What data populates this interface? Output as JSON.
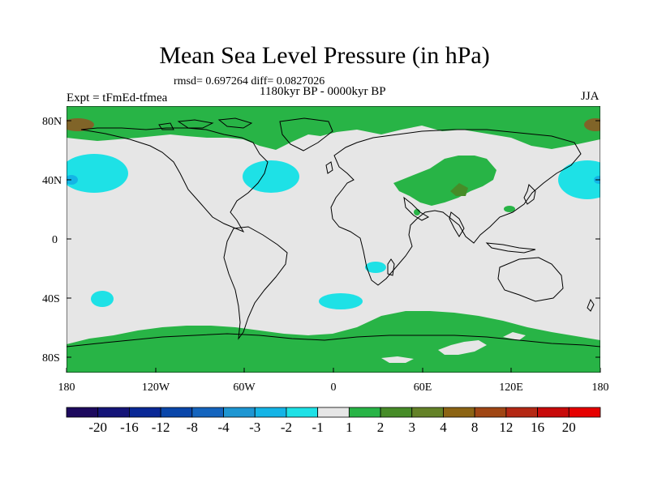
{
  "title": "Mean Sea Level Pressure (in hPa)",
  "stats_text": "rmsd= 0.697264 diff= 0.0827026",
  "period_text": "1180kyr BP - 0000kyr BP",
  "experiment_text": "Expt = tFmEd-tfmea",
  "season": "JJA",
  "lat_labels": [
    "80N",
    "40N",
    "0",
    "40S",
    "80S"
  ],
  "lon_labels": [
    "180",
    "120W",
    "60W",
    "0",
    "60E",
    "120E",
    "180"
  ],
  "colorbar": {
    "levels": [
      "-20",
      "-16",
      "-12",
      "-8",
      "-4",
      "-3",
      "-2",
      "-1",
      "1",
      "2",
      "3",
      "4",
      "8",
      "12",
      "16",
      "20"
    ],
    "colors": [
      "#1d0a5e",
      "#141478",
      "#0a2896",
      "#0a46aa",
      "#1464be",
      "#1e96d2",
      "#14b4e6",
      "#1ee1e6",
      "#e6e6e6",
      "#28b446",
      "#468c28",
      "#648228",
      "#8c6414",
      "#a04614",
      "#b42814",
      "#c80a0a",
      "#e60000"
    ]
  },
  "colors": {
    "neutral": "#e6e6e6",
    "positive_light": "#28b446",
    "positive_mid": "#468c28",
    "positive_dark": "#806428",
    "negative_light": "#1ee1e6",
    "negative_mid": "#14b4e6",
    "coast": "#000000"
  }
}
